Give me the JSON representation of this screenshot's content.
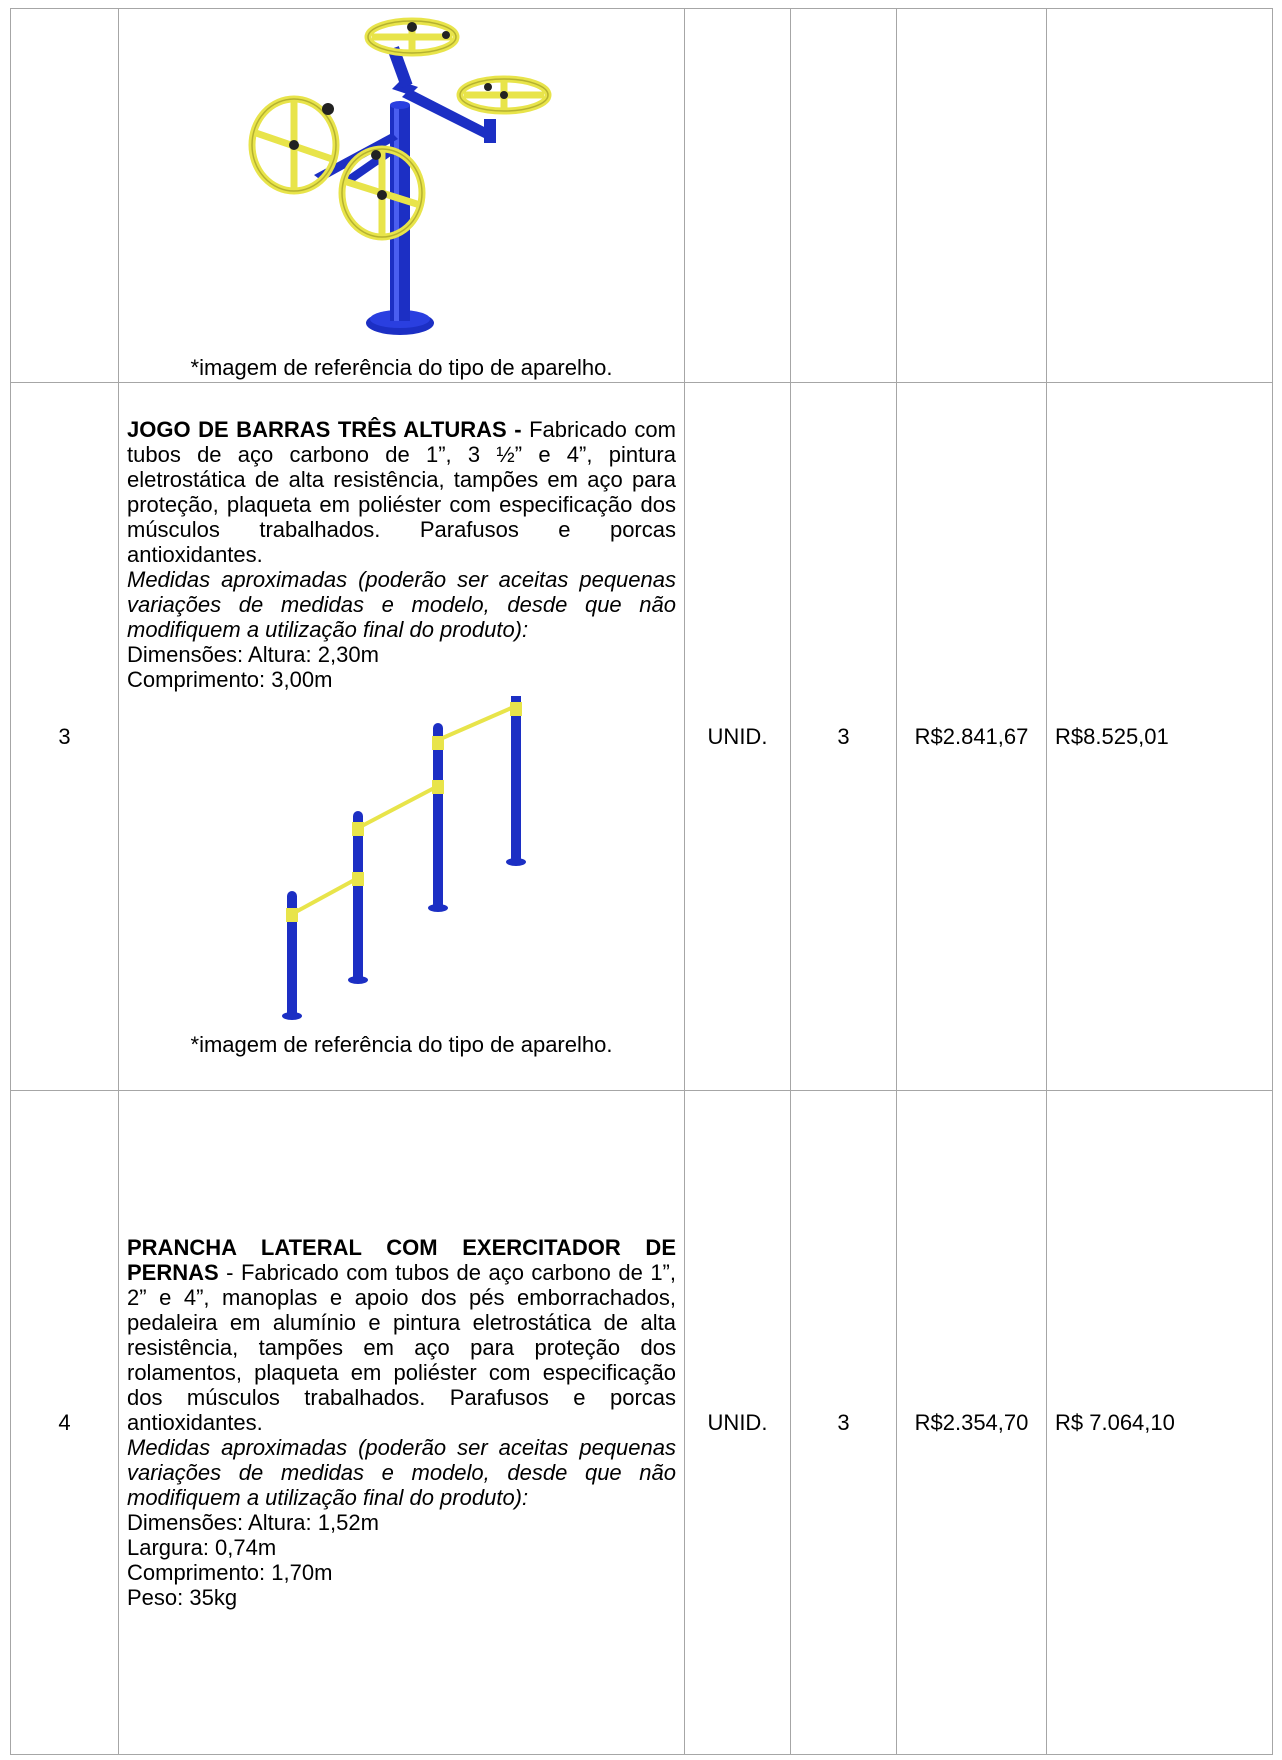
{
  "rows": [
    {
      "item": "",
      "caption": "*imagem de referência do tipo de aparelho.",
      "unit": "",
      "qty": "",
      "unit_price": "",
      "total": ""
    },
    {
      "item": "3",
      "title": "JOGO DE BARRAS TRÊS ALTURAS -",
      "description": "Fabricado com tubos de aço carbono de 1”, 3 ½” e 4”, pintura eletrostática de alta resistência, tampões em aço para proteção, plaqueta em poliéster com especificação dos músculos trabalhados. Parafusos e porcas antioxidantes.",
      "note": "Medidas aproximadas (poderão ser aceitas pequenas variações de medidas e modelo, desde que não modifiquem a utilização final do produto):",
      "dim1": "Dimensões: Altura: 2,30m",
      "dim2": "Comprimento: 3,00m",
      "caption": "*imagem de referência do tipo de aparelho.",
      "unit": "UNID.",
      "qty": "3",
      "unit_price": "R$2.841,67",
      "total": "R$8.525,01"
    },
    {
      "item": "4",
      "title": "PRANCHA LATERAL COM EXERCITADOR DE PERNAS",
      "description": " - Fabricado com tubos de aço carbono de 1”, 2” e 4”, manoplas e apoio dos pés emborrachados, pedaleira em alumínio e pintura eletrostática de alta resistência, tampões em aço para proteção dos rolamentos, plaqueta em poliéster com especificação dos músculos trabalhados. Parafusos e porcas antioxidantes.",
      "note": "Medidas aproximadas (poderão ser aceitas pequenas variações de medidas e modelo, desde que não modifiquem a utilização final do produto):",
      "dim1": "Dimensões: Altura: 1,52m",
      "dim2": "Largura: 0,74m",
      "dim3": "Comprimento: 1,70m",
      "dim4": "Peso: 35kg",
      "unit": "UNID.",
      "qty": "3",
      "unit_price": "R$2.354,70",
      "total": "R$ 7.064,10"
    }
  ],
  "colors": {
    "blue": "#1c2fc4",
    "yellow": "#e8e44a",
    "border": "#a6a6a6"
  }
}
